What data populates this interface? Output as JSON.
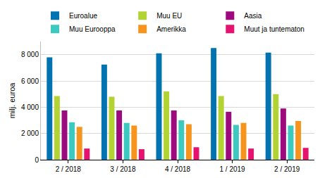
{
  "chart_data": {
    "type": "bar",
    "categories": [
      "2 / 2018",
      "3 / 2018",
      "4 / 2018",
      "1 / 2019",
      "2 / 2019"
    ],
    "y_label": "milj. euroa",
    "series": [
      {
        "name": "Euroalue",
        "color": "#0073b0",
        "values": [
          7800,
          7250,
          8100,
          8500,
          8150
        ]
      },
      {
        "name": "Muu EU",
        "color": "#b3d335",
        "values": [
          4850,
          4800,
          5200,
          4850,
          5000
        ]
      },
      {
        "name": "Aasia",
        "color": "#9c0a7d",
        "values": [
          3750,
          3750,
          3750,
          3650,
          3900
        ]
      },
      {
        "name": "Muu Eurooppa",
        "color": "#3dc8c0",
        "values": [
          2850,
          2800,
          3000,
          2650,
          2600
        ]
      },
      {
        "name": "Amerikka",
        "color": "#f7941d",
        "values": [
          2500,
          2600,
          2700,
          2800,
          2950
        ]
      },
      {
        "name": "Muut ja tuntematon",
        "color": "#e5126f",
        "values": [
          850,
          800,
          950,
          850,
          900
        ]
      }
    ],
    "ylim": [
      0,
      9000
    ],
    "yticks": [
      0,
      {
        "value": 2000,
        "label": "2 000"
      },
      {
        "value": 4000,
        "label": "4 000"
      },
      {
        "value": 6000,
        "label": "6 000"
      },
      {
        "value": 8000,
        "label": "8 000"
      }
    ],
    "grid": true,
    "legend": "top"
  }
}
